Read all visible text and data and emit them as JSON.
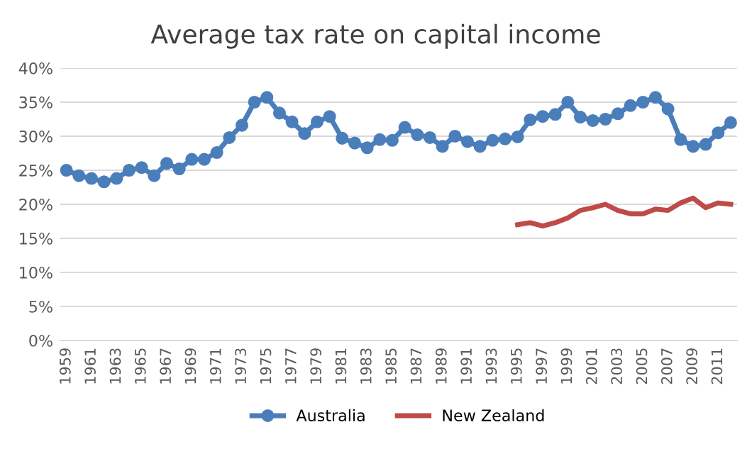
{
  "chart_data": {
    "type": "line",
    "title": "Average tax rate on capital income",
    "categories": [
      "1959",
      null,
      "1961",
      null,
      "1963",
      null,
      "1965",
      null,
      "1967",
      null,
      "1969",
      null,
      "1971",
      null,
      "1973",
      null,
      "1975",
      null,
      "1977",
      null,
      "1979",
      null,
      "1981",
      null,
      "1983",
      null,
      "1985",
      null,
      "1987",
      null,
      "1989",
      null,
      "1991",
      null,
      "1993",
      null,
      "1995",
      null,
      "1997",
      null,
      "1999",
      null,
      "2001",
      null,
      "2003",
      null,
      "2005",
      null,
      "2007",
      null,
      "2009",
      null,
      "2011",
      null
    ],
    "series": [
      {
        "name": "Australia",
        "color": "#4a7ebb",
        "marker": "circle",
        "values": [
          25,
          24.2,
          23.8,
          23.3,
          23.8,
          25,
          25.4,
          24.2,
          26,
          25.2,
          26.6,
          26.6,
          27.6,
          29.8,
          31.6,
          35,
          35.7,
          33.4,
          32.1,
          30.4,
          32.1,
          32.9,
          29.7,
          29,
          28.3,
          29.5,
          29.4,
          31.3,
          30.2,
          29.8,
          28.5,
          30,
          29.2,
          28.5,
          29.4,
          29.6,
          29.9,
          32.4,
          32.9,
          33.2,
          35,
          32.8,
          32.3,
          32.5,
          33.3,
          34.5,
          35,
          35.7,
          34,
          29.5,
          28.5,
          28.8,
          30.5,
          32
        ]
      },
      {
        "name": "New Zealand",
        "color": "#be4b48",
        "marker": "none",
        "values": [
          null,
          null,
          null,
          null,
          null,
          null,
          null,
          null,
          null,
          null,
          null,
          null,
          null,
          null,
          null,
          null,
          null,
          null,
          null,
          null,
          null,
          null,
          null,
          null,
          null,
          null,
          null,
          null,
          null,
          null,
          null,
          null,
          null,
          null,
          null,
          null,
          17,
          17.3,
          16.8,
          17.3,
          18,
          19.1,
          19.5,
          20,
          19.1,
          18.6,
          18.6,
          19.3,
          19.1,
          20.2,
          20.9,
          19.5,
          20.2,
          20
        ]
      }
    ],
    "ylim": [
      0,
      40
    ],
    "yticks": [
      {
        "value": 0,
        "label": "0%"
      },
      {
        "value": 5,
        "label": "5%"
      },
      {
        "value": 10,
        "label": "10%"
      },
      {
        "value": 15,
        "label": "15%"
      },
      {
        "value": 20,
        "label": "20%"
      },
      {
        "value": 25,
        "label": "25%"
      },
      {
        "value": 30,
        "label": "30%"
      },
      {
        "value": 35,
        "label": "35%"
      },
      {
        "value": 40,
        "label": "40%"
      }
    ],
    "grid": "y",
    "legend": "bottom",
    "line_style": "solid"
  }
}
